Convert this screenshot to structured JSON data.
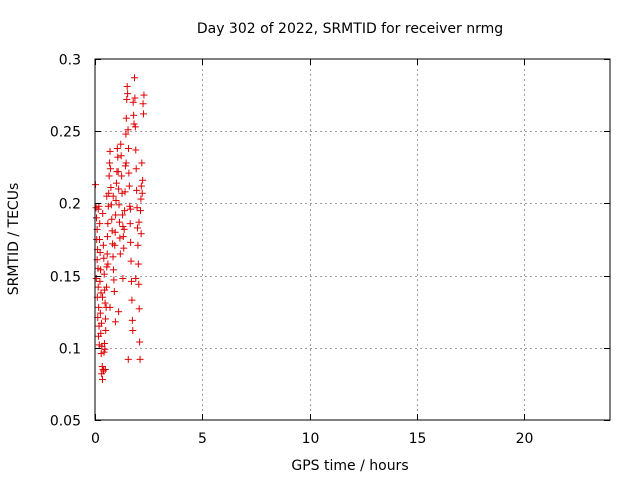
{
  "chart_data": {
    "type": "scatter",
    "title": "Day 302 of 2022, SRMTID for receiver nrmg",
    "xlabel": "GPS time / hours",
    "ylabel": "SRMTID / TECUs",
    "xlim": [
      0,
      24
    ],
    "ylim": [
      0.05,
      0.3
    ],
    "x_ticks": [
      0,
      5,
      10,
      15,
      20
    ],
    "x_tick_labels": [
      "0",
      "5",
      "10",
      "15",
      "20"
    ],
    "y_ticks": [
      0.05,
      0.1,
      0.15,
      0.2,
      0.25,
      0.3
    ],
    "y_tick_labels": [
      "0.05",
      "0.1",
      "0.15",
      "0.2",
      "0.25",
      "0.3"
    ],
    "grid": true,
    "marker": "plus",
    "color": "#e00000",
    "series": [
      {
        "name": "nrmg",
        "points": [
          [
            0.02,
            0.213
          ],
          [
            0.05,
            0.197
          ],
          [
            0.07,
            0.19
          ],
          [
            0.1,
            0.182
          ],
          [
            0.08,
            0.175
          ],
          [
            0.12,
            0.168
          ],
          [
            0.1,
            0.161
          ],
          [
            0.14,
            0.155
          ],
          [
            0.06,
            0.148
          ],
          [
            0.15,
            0.142
          ],
          [
            0.11,
            0.135
          ],
          [
            0.17,
            0.128
          ],
          [
            0.13,
            0.121
          ],
          [
            0.19,
            0.115
          ],
          [
            0.16,
            0.108
          ],
          [
            0.2,
            0.102
          ],
          [
            0.18,
            0.198
          ],
          [
            0.22,
            0.186
          ],
          [
            0.21,
            0.175
          ],
          [
            0.24,
            0.166
          ],
          [
            0.26,
            0.154
          ],
          [
            0.23,
            0.146
          ],
          [
            0.28,
            0.138
          ],
          [
            0.25,
            0.124
          ],
          [
            0.3,
            0.117
          ],
          [
            0.27,
            0.11
          ],
          [
            0.32,
            0.101
          ],
          [
            0.29,
            0.096
          ],
          [
            0.34,
            0.087
          ],
          [
            0.31,
            0.082
          ],
          [
            0.35,
            0.078
          ],
          [
            0.38,
            0.085
          ],
          [
            0.4,
            0.084
          ],
          [
            0.42,
            0.097
          ],
          [
            0.44,
            0.103
          ],
          [
            0.46,
            0.099
          ],
          [
            0.48,
            0.085
          ],
          [
            0.36,
            0.193
          ],
          [
            0.39,
            0.171
          ],
          [
            0.41,
            0.162
          ],
          [
            0.43,
            0.151
          ],
          [
            0.45,
            0.14
          ],
          [
            0.47,
            0.131
          ],
          [
            0.49,
            0.12
          ],
          [
            0.5,
            0.112
          ],
          [
            0.52,
            0.128
          ],
          [
            0.54,
            0.142
          ],
          [
            0.55,
            0.156
          ],
          [
            0.57,
            0.165
          ],
          [
            0.58,
            0.177
          ],
          [
            0.6,
            0.186
          ],
          [
            0.62,
            0.198
          ],
          [
            0.64,
            0.207
          ],
          [
            0.66,
            0.219
          ],
          [
            0.68,
            0.228
          ],
          [
            0.7,
            0.236
          ],
          [
            0.72,
            0.224
          ],
          [
            0.74,
            0.211
          ],
          [
            0.76,
            0.199
          ],
          [
            0.78,
            0.189
          ],
          [
            0.8,
            0.181
          ],
          [
            0.82,
            0.172
          ],
          [
            0.84,
            0.163
          ],
          [
            0.86,
            0.154
          ],
          [
            0.88,
            0.147
          ],
          [
            0.9,
            0.139
          ],
          [
            0.92,
            0.171
          ],
          [
            0.94,
            0.18
          ],
          [
            0.96,
            0.192
          ],
          [
            0.98,
            0.202
          ],
          [
            1.0,
            0.214
          ],
          [
            1.02,
            0.222
          ],
          [
            1.04,
            0.238
          ],
          [
            1.06,
            0.232
          ],
          [
            1.08,
            0.222
          ],
          [
            1.1,
            0.21
          ],
          [
            1.12,
            0.199
          ],
          [
            1.14,
            0.187
          ],
          [
            1.16,
            0.176
          ],
          [
            1.18,
            0.165
          ],
          [
            1.2,
            0.241
          ],
          [
            1.22,
            0.233
          ],
          [
            1.24,
            0.219
          ],
          [
            1.26,
            0.207
          ],
          [
            1.28,
            0.192
          ],
          [
            1.3,
            0.184
          ],
          [
            1.32,
            0.177
          ],
          [
            1.34,
            0.169
          ],
          [
            1.36,
            0.182
          ],
          [
            1.38,
            0.195
          ],
          [
            1.4,
            0.208
          ],
          [
            1.42,
            0.226
          ],
          [
            1.44,
            0.248
          ],
          [
            1.46,
            0.259
          ],
          [
            1.48,
            0.272
          ],
          [
            1.5,
            0.281
          ],
          [
            1.52,
            0.276
          ],
          [
            1.54,
            0.251
          ],
          [
            1.56,
            0.238
          ],
          [
            1.58,
            0.221
          ],
          [
            1.6,
            0.212
          ],
          [
            1.62,
            0.198
          ],
          [
            1.64,
            0.186
          ],
          [
            1.66,
            0.173
          ],
          [
            1.68,
            0.16
          ],
          [
            1.7,
            0.146
          ],
          [
            1.72,
            0.133
          ],
          [
            1.74,
            0.119
          ],
          [
            1.76,
            0.112
          ],
          [
            1.78,
            0.27
          ],
          [
            1.8,
            0.261
          ],
          [
            1.82,
            0.255
          ],
          [
            1.84,
            0.287
          ],
          [
            1.86,
            0.273
          ],
          [
            1.88,
            0.253
          ],
          [
            1.9,
            0.237
          ],
          [
            1.92,
            0.224
          ],
          [
            1.94,
            0.209
          ],
          [
            1.96,
            0.197
          ],
          [
            1.98,
            0.183
          ],
          [
            2.0,
            0.171
          ],
          [
            2.02,
            0.158
          ],
          [
            2.04,
            0.144
          ],
          [
            2.06,
            0.127
          ],
          [
            2.08,
            0.104
          ],
          [
            2.1,
            0.092
          ],
          [
            2.12,
            0.195
          ],
          [
            2.14,
            0.203
          ],
          [
            2.16,
            0.212
          ],
          [
            2.18,
            0.228
          ],
          [
            2.2,
            0.207
          ],
          [
            2.22,
            0.216
          ],
          [
            2.24,
            0.269
          ],
          [
            2.26,
            0.262
          ],
          [
            2.28,
            0.275
          ],
          [
            1.55,
            0.092
          ],
          [
            1.3,
            0.148
          ],
          [
            0.95,
            0.118
          ],
          [
            0.6,
            0.158
          ],
          [
            0.35,
            0.135
          ],
          [
            0.85,
            0.205
          ],
          [
            1.1,
            0.125
          ],
          [
            1.65,
            0.196
          ],
          [
            2.05,
            0.187
          ],
          [
            1.9,
            0.148
          ],
          [
            0.7,
            0.128
          ],
          [
            0.15,
            0.196
          ],
          [
            1.45,
            0.228
          ],
          [
            0.55,
            0.205
          ],
          [
            2.15,
            0.179
          ]
        ]
      }
    ]
  }
}
